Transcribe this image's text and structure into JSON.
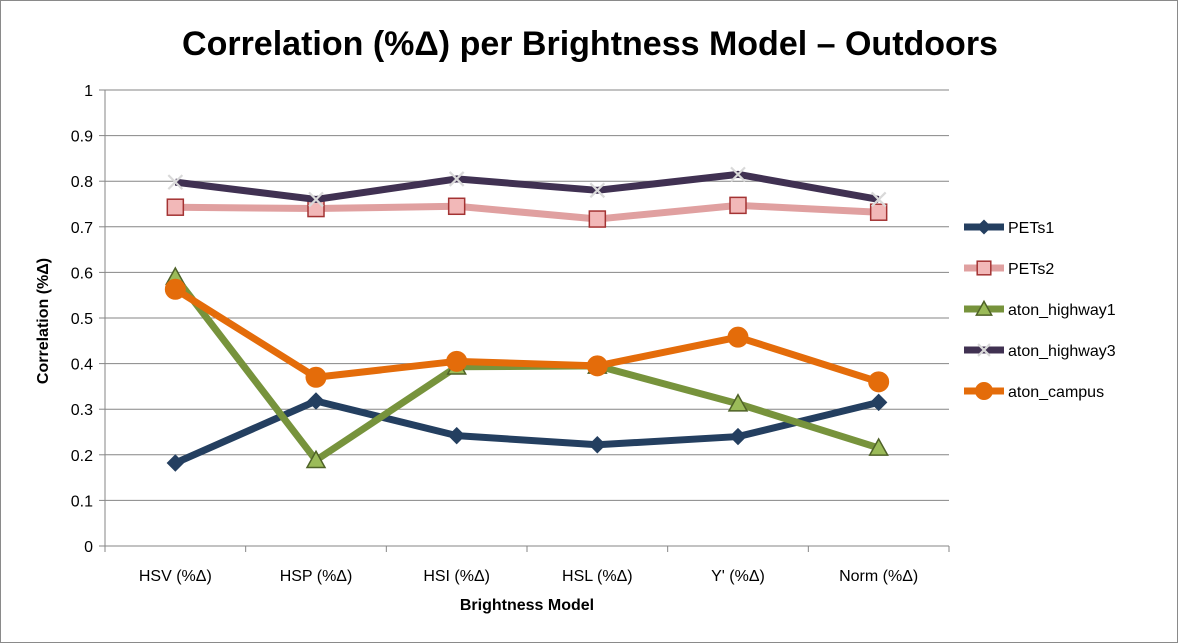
{
  "chart_data": {
    "type": "line",
    "title": "Correlation (%Δ) per Brightness Model – Outdoors",
    "xlabel": "Brightness Model",
    "ylabel": "Correlation (%Δ)",
    "categories": [
      "HSV (%Δ)",
      "HSP (%Δ)",
      "HSI (%Δ)",
      "HSL (%Δ)",
      "Y' (%Δ)",
      "Norm (%Δ)"
    ],
    "ylim": [
      0,
      1
    ],
    "yticks": [
      "0",
      "0.1",
      "0.2",
      "0.3",
      "0.4",
      "0.5",
      "0.6",
      "0.7",
      "0.8",
      "0.9",
      "1"
    ],
    "grid": true,
    "legend_position": "right",
    "series": [
      {
        "name": "PETs1",
        "values": [
          0.182,
          0.318,
          0.242,
          0.222,
          0.24,
          0.315
        ],
        "color": "#243f60",
        "marker": "diamond"
      },
      {
        "name": "PETs2",
        "values": [
          0.743,
          0.74,
          0.745,
          0.717,
          0.747,
          0.732
        ],
        "color": "#e0a0a0",
        "marker": "square"
      },
      {
        "name": "aton_highway1",
        "values": [
          0.59,
          0.188,
          0.393,
          0.395,
          0.312,
          0.215
        ],
        "color": "#77933c",
        "marker": "triangle"
      },
      {
        "name": "aton_highway3",
        "values": [
          0.798,
          0.76,
          0.805,
          0.78,
          0.815,
          0.76
        ],
        "color": "#403152",
        "marker": "x"
      },
      {
        "name": "aton_campus",
        "values": [
          0.563,
          0.37,
          0.405,
          0.395,
          0.458,
          0.36
        ],
        "color": "#e46c0a",
        "marker": "circle"
      }
    ]
  }
}
